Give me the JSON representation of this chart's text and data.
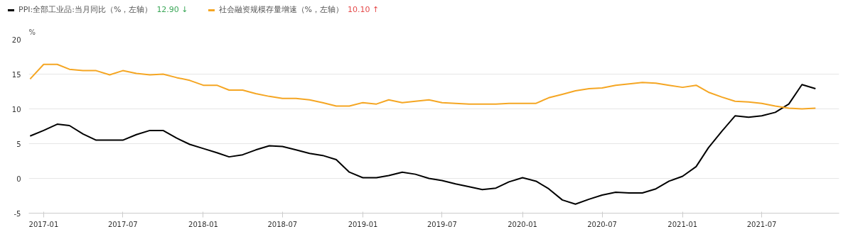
{
  "chart_data": {
    "type": "line",
    "ylabel": "%",
    "x": [
      "2016-12",
      "2017-01",
      "2017-02",
      "2017-03",
      "2017-04",
      "2017-05",
      "2017-06",
      "2017-07",
      "2017-08",
      "2017-09",
      "2017-10",
      "2017-11",
      "2017-12",
      "2018-01",
      "2018-02",
      "2018-03",
      "2018-04",
      "2018-05",
      "2018-06",
      "2018-07",
      "2018-08",
      "2018-09",
      "2018-10",
      "2018-11",
      "2018-12",
      "2019-01",
      "2019-02",
      "2019-03",
      "2019-04",
      "2019-05",
      "2019-06",
      "2019-07",
      "2019-08",
      "2019-09",
      "2019-10",
      "2019-11",
      "2019-12",
      "2020-01",
      "2020-02",
      "2020-03",
      "2020-04",
      "2020-05",
      "2020-06",
      "2020-07",
      "2020-08",
      "2020-09",
      "2020-10",
      "2020-11",
      "2020-12",
      "2021-01",
      "2021-02",
      "2021-03",
      "2021-04",
      "2021-05",
      "2021-06",
      "2021-07",
      "2021-08",
      "2021-09",
      "2021-10",
      "2021-11"
    ],
    "series": [
      {
        "name": "PPI:全部工业品:当月同比（%，左轴）",
        "color": "#000000",
        "values": [
          6.1,
          6.9,
          7.8,
          7.6,
          6.4,
          5.5,
          5.5,
          5.5,
          6.3,
          6.9,
          6.9,
          5.8,
          4.9,
          4.3,
          3.7,
          3.1,
          3.4,
          4.1,
          4.7,
          4.6,
          4.1,
          3.6,
          3.3,
          2.7,
          0.9,
          0.1,
          0.1,
          0.4,
          0.9,
          0.6,
          0.0,
          -0.3,
          -0.8,
          -1.2,
          -1.6,
          -1.4,
          -0.5,
          0.1,
          -0.4,
          -1.5,
          -3.1,
          -3.7,
          -3.0,
          -2.4,
          -2.0,
          -2.1,
          -2.1,
          -1.5,
          -0.4,
          0.3,
          1.7,
          4.4,
          6.8,
          9.0,
          8.8,
          9.0,
          9.5,
          10.7,
          13.5,
          12.9
        ]
      },
      {
        "name": "社会融资规模存量增速（%，左轴）",
        "color": "#f5a623",
        "values": [
          14.3,
          16.4,
          16.4,
          15.7,
          15.5,
          15.5,
          14.9,
          15.5,
          15.1,
          14.9,
          15.0,
          14.5,
          14.1,
          13.4,
          13.4,
          12.7,
          12.7,
          12.2,
          11.8,
          11.5,
          11.5,
          11.3,
          10.9,
          10.4,
          10.4,
          10.9,
          10.7,
          11.3,
          10.9,
          11.1,
          11.3,
          10.9,
          10.8,
          10.7,
          10.7,
          10.7,
          10.8,
          10.8,
          10.8,
          11.6,
          12.1,
          12.6,
          12.9,
          13.0,
          13.4,
          13.6,
          13.8,
          13.7,
          13.4,
          13.1,
          13.4,
          12.4,
          11.7,
          11.1,
          11.0,
          10.8,
          10.4,
          10.1,
          10.0,
          10.1
        ]
      }
    ],
    "annotations": [
      "12.90 ↓",
      "10.10 ↑"
    ],
    "xlim": [
      "2016-11-28",
      "2021-12-25"
    ],
    "xticks": [
      {
        "value": "2017-01",
        "label": "2017-01"
      },
      {
        "value": "2017-07",
        "label": "2017-07"
      },
      {
        "value": "2018-01",
        "label": "2018-01"
      },
      {
        "value": "2018-07",
        "label": "2018-07"
      },
      {
        "value": "2019-01",
        "label": "2019-01"
      },
      {
        "value": "2019-07",
        "label": "2019-07"
      },
      {
        "value": "2020-01",
        "label": "2020-01"
      },
      {
        "value": "2020-07",
        "label": "2020-07"
      },
      {
        "value": "2021-01",
        "label": "2021-01"
      },
      {
        "value": "2021-07",
        "label": "2021-07"
      }
    ],
    "ylim": [
      -5,
      20
    ],
    "yticks": [
      -5,
      0,
      5,
      10,
      15,
      20
    ],
    "grid": "y",
    "legend": "top left"
  }
}
